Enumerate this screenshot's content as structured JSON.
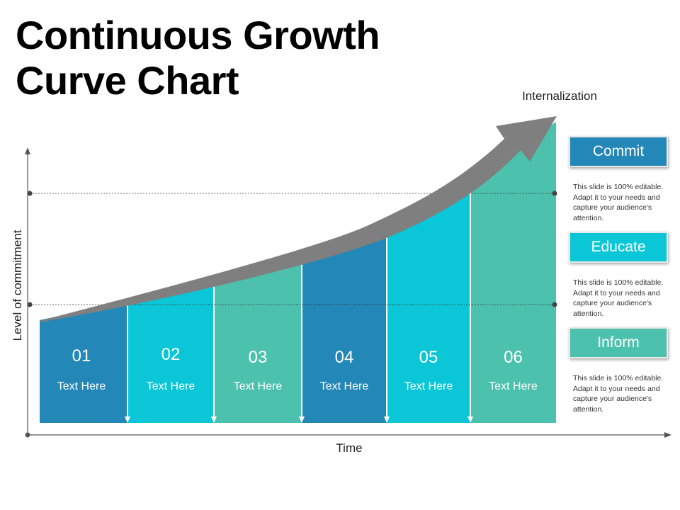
{
  "title": "Continuous  Growth\nCurve Chart",
  "axes": {
    "y_label": "Level of commitment",
    "x_label": "Time"
  },
  "top_label": "Internalization",
  "stages": [
    {
      "number": "01",
      "text": "Text Here",
      "color": "#2387b8"
    },
    {
      "number": "02",
      "text": "Text Here",
      "color": "#0ac6d6"
    },
    {
      "number": "03",
      "text": "Text Here",
      "color": "#4cc1ad"
    },
    {
      "number": "04",
      "text": "Text Here",
      "color": "#2387b8"
    },
    {
      "number": "05",
      "text": "Text Here",
      "color": "#0ac6d6"
    },
    {
      "number": "06",
      "text": "Text Here",
      "color": "#4cc1ad"
    }
  ],
  "panels": [
    {
      "label": "Commit",
      "color": "#2387b8",
      "desc": "This slide is 100% editable. Adapt it to your needs and capture your audience's attention."
    },
    {
      "label": "Educate",
      "color": "#0ac6d6",
      "desc": "This slide is 100% editable. Adapt it to your needs and capture your audience's attention."
    },
    {
      "label": "Inform",
      "color": "#4cc1ad",
      "desc": "This slide is 100% editable. Adapt it to your needs and capture your audience's attention."
    }
  ],
  "colors": {
    "arrow": "#7f7f7f",
    "axis": "#555555"
  }
}
